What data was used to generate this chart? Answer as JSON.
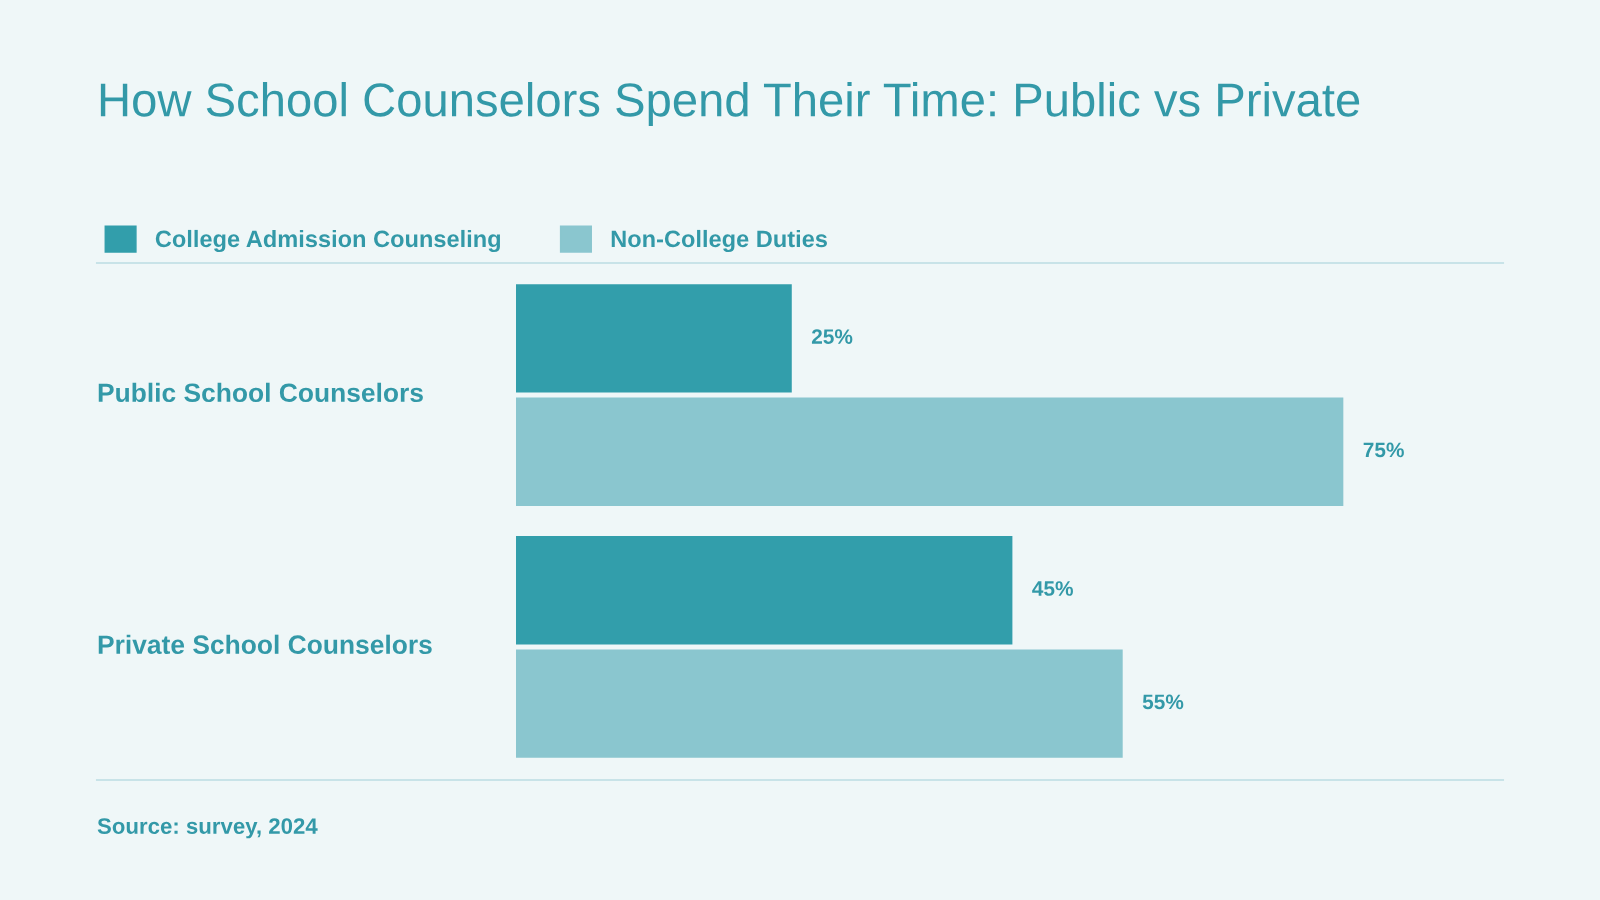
{
  "chart_data": {
    "type": "bar",
    "orientation": "horizontal",
    "title": "How School Counselors Spend Their Time: Public vs Private",
    "categories": [
      "Public School Counselors",
      "Private School Counselors"
    ],
    "series": [
      {
        "name": "College Admission Counseling",
        "color": "#329eab",
        "values": [
          25,
          45
        ],
        "value_labels": [
          "25%",
          "45%"
        ]
      },
      {
        "name": "Non-College Duties",
        "color": "#8ac6cf",
        "values": [
          75,
          55
        ],
        "value_labels": [
          "75%",
          "55%"
        ]
      }
    ],
    "legend": "top left",
    "annotations": [
      "Source: survey, 2024"
    ]
  }
}
